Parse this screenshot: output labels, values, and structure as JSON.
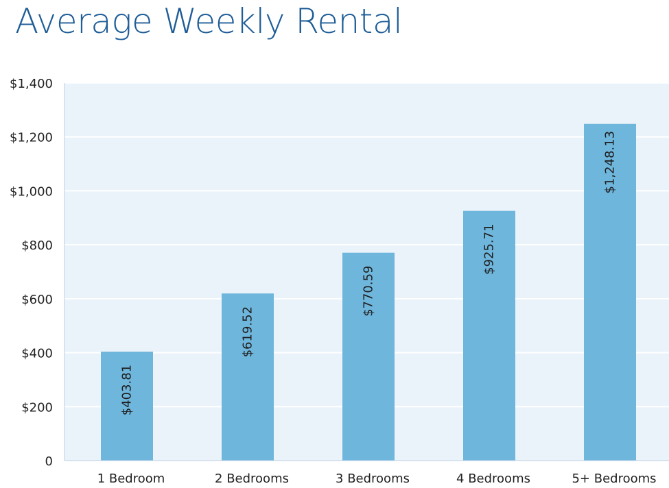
{
  "chart_data": {
    "type": "bar",
    "title": "Average Weekly Rental",
    "categories": [
      "1 Bedroom",
      "2 Bedrooms",
      "3 Bedrooms",
      "4 Bedrooms",
      "5+ Bedrooms"
    ],
    "values": [
      403.81,
      619.52,
      770.59,
      925.71,
      1248.13
    ],
    "data_labels": [
      "$403.81",
      "$619.52",
      "$770.59",
      "$925.71",
      "$1,248.13"
    ],
    "ylim": [
      0,
      1400
    ],
    "yticks": [
      0,
      200,
      400,
      600,
      800,
      1000,
      1200,
      1400
    ],
    "ytick_labels": [
      "0",
      "$200",
      "$400",
      "$600",
      "$800",
      "$1,000",
      "$1,200",
      "$1,400"
    ],
    "grid": true,
    "legend": "none",
    "xlabel": "",
    "ylabel": "",
    "colors": {
      "bar": "#6fb6dc",
      "plot_background": "#eaf2fa",
      "gridline": "#ffffff",
      "axis": "#b9cfe3",
      "title": "#1f5d97"
    }
  }
}
